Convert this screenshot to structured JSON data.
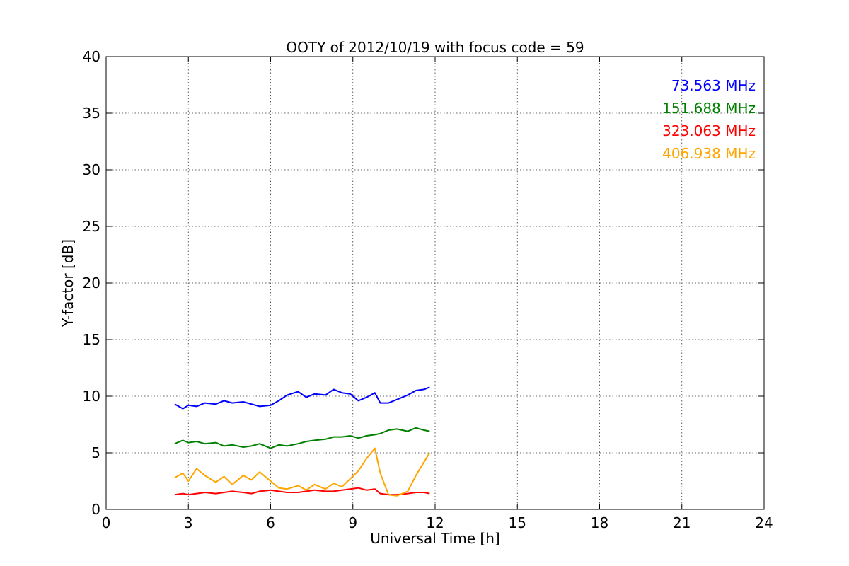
{
  "chart_data": {
    "type": "line",
    "title": "OOTY of 2012/10/19 with focus code = 59",
    "xlabel": "Universal Time [h]",
    "ylabel": "Y-factor [dB]",
    "xlim": [
      0,
      24
    ],
    "ylim": [
      0,
      40
    ],
    "xticks": [
      0,
      3,
      6,
      9,
      12,
      15,
      18,
      21,
      24
    ],
    "yticks": [
      0,
      5,
      10,
      15,
      20,
      25,
      30,
      35,
      40
    ],
    "grid": true,
    "legend_position": "top-right",
    "series": [
      {
        "name": "73.563 MHz",
        "color": "#0000ff",
        "x": [
          2.5,
          2.8,
          3.0,
          3.3,
          3.6,
          4.0,
          4.3,
          4.6,
          5.0,
          5.3,
          5.6,
          6.0,
          6.3,
          6.6,
          7.0,
          7.3,
          7.6,
          8.0,
          8.3,
          8.6,
          8.9,
          9.2,
          9.5,
          9.8,
          10.0,
          10.3,
          10.6,
          11.0,
          11.3,
          11.6,
          11.8
        ],
        "y": [
          9.3,
          8.9,
          9.2,
          9.1,
          9.4,
          9.3,
          9.6,
          9.4,
          9.5,
          9.3,
          9.1,
          9.2,
          9.6,
          10.1,
          10.4,
          9.9,
          10.2,
          10.1,
          10.6,
          10.3,
          10.2,
          9.6,
          9.9,
          10.3,
          9.4,
          9.4,
          9.7,
          10.1,
          10.5,
          10.6,
          10.8
        ]
      },
      {
        "name": "151.688 MHz",
        "color": "#008000",
        "x": [
          2.5,
          2.8,
          3.0,
          3.3,
          3.6,
          4.0,
          4.3,
          4.6,
          5.0,
          5.3,
          5.6,
          6.0,
          6.3,
          6.6,
          7.0,
          7.3,
          7.6,
          8.0,
          8.3,
          8.6,
          8.9,
          9.2,
          9.5,
          9.8,
          10.0,
          10.3,
          10.6,
          11.0,
          11.3,
          11.6,
          11.8
        ],
        "y": [
          5.8,
          6.1,
          5.9,
          6.0,
          5.8,
          5.9,
          5.6,
          5.7,
          5.5,
          5.6,
          5.8,
          5.4,
          5.7,
          5.6,
          5.8,
          6.0,
          6.1,
          6.2,
          6.4,
          6.4,
          6.5,
          6.3,
          6.5,
          6.6,
          6.7,
          7.0,
          7.1,
          6.9,
          7.2,
          7.0,
          6.9
        ]
      },
      {
        "name": "323.063 MHz",
        "color": "#ff0000",
        "x": [
          2.5,
          2.8,
          3.0,
          3.3,
          3.6,
          4.0,
          4.3,
          4.6,
          5.0,
          5.3,
          5.6,
          6.0,
          6.3,
          6.6,
          7.0,
          7.3,
          7.6,
          8.0,
          8.3,
          8.6,
          8.9,
          9.2,
          9.5,
          9.8,
          10.0,
          10.3,
          10.6,
          11.0,
          11.3,
          11.6,
          11.8
        ],
        "y": [
          1.3,
          1.4,
          1.3,
          1.4,
          1.5,
          1.4,
          1.5,
          1.6,
          1.5,
          1.4,
          1.6,
          1.7,
          1.6,
          1.5,
          1.5,
          1.6,
          1.7,
          1.6,
          1.6,
          1.7,
          1.8,
          1.9,
          1.7,
          1.8,
          1.4,
          1.3,
          1.3,
          1.4,
          1.5,
          1.5,
          1.4
        ]
      },
      {
        "name": "406.938 MHz",
        "color": "#ffa500",
        "x": [
          2.5,
          2.8,
          3.0,
          3.3,
          3.6,
          4.0,
          4.3,
          4.6,
          5.0,
          5.3,
          5.6,
          6.0,
          6.3,
          6.6,
          7.0,
          7.3,
          7.6,
          8.0,
          8.3,
          8.6,
          8.9,
          9.2,
          9.5,
          9.8,
          10.0,
          10.3,
          10.6,
          11.0,
          11.3,
          11.6,
          11.8
        ],
        "y": [
          2.8,
          3.2,
          2.5,
          3.6,
          3.0,
          2.4,
          2.9,
          2.2,
          3.0,
          2.6,
          3.3,
          2.5,
          1.9,
          1.8,
          2.1,
          1.7,
          2.2,
          1.8,
          2.3,
          2.0,
          2.7,
          3.4,
          4.5,
          5.4,
          3.2,
          1.3,
          1.2,
          1.6,
          3.0,
          4.2,
          5.0
        ]
      }
    ]
  }
}
